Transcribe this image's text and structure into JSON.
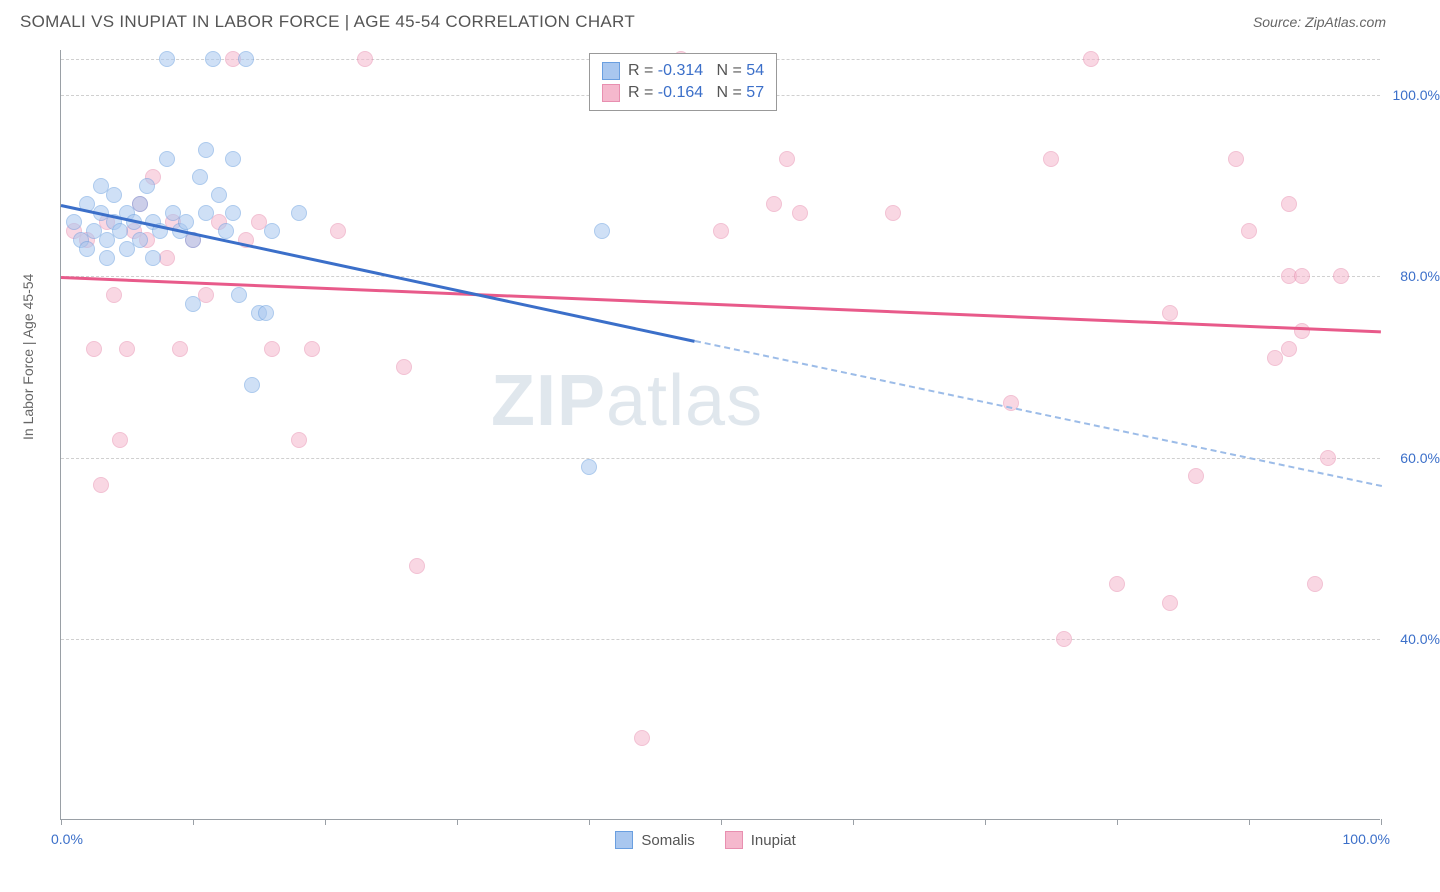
{
  "header": {
    "title": "SOMALI VS INUPIAT IN LABOR FORCE | AGE 45-54 CORRELATION CHART",
    "source": "Source: ZipAtlas.com"
  },
  "chart": {
    "type": "scatter",
    "ylabel": "In Labor Force | Age 45-54",
    "xlim": [
      0,
      100
    ],
    "ylim": [
      20,
      105
    ],
    "background_color": "#ffffff",
    "grid_color": "#d0d0d0",
    "axis_color": "#9aa0a6",
    "tick_label_color": "#3b6fc9",
    "label_fontsize": 14,
    "marker_radius": 8,
    "marker_opacity": 0.55,
    "yticks": [
      40,
      60,
      80,
      100
    ],
    "ytick_labels": [
      "40.0%",
      "60.0%",
      "80.0%",
      "100.0%"
    ],
    "xticks": [
      0,
      10,
      20,
      30,
      40,
      50,
      60,
      70,
      80,
      90,
      100
    ],
    "x_min_label": "0.0%",
    "x_max_label": "100.0%",
    "watermark_zip": "ZIP",
    "watermark_atlas": "atlas",
    "series": {
      "somalis": {
        "label": "Somalis",
        "color_fill": "#a9c7ef",
        "color_stroke": "#6a9fe0",
        "R": "-0.314",
        "N": "54",
        "trend": {
          "x1": 0,
          "y1": 88,
          "x2": 48,
          "y2": 73,
          "x2_ext": 100,
          "y2_ext": 57
        },
        "points": [
          [
            1,
            86
          ],
          [
            1.5,
            84
          ],
          [
            2,
            88
          ],
          [
            2,
            83
          ],
          [
            2.5,
            85
          ],
          [
            3,
            87
          ],
          [
            3,
            90
          ],
          [
            3.5,
            84
          ],
          [
            3.5,
            82
          ],
          [
            4,
            86
          ],
          [
            4,
            89
          ],
          [
            4.5,
            85
          ],
          [
            5,
            87
          ],
          [
            5,
            83
          ],
          [
            5.5,
            86
          ],
          [
            6,
            88
          ],
          [
            6,
            84
          ],
          [
            6.5,
            90
          ],
          [
            7,
            86
          ],
          [
            7,
            82
          ],
          [
            7.5,
            85
          ],
          [
            8,
            104
          ],
          [
            8,
            93
          ],
          [
            8.5,
            87
          ],
          [
            9,
            85
          ],
          [
            9.5,
            86
          ],
          [
            10,
            84
          ],
          [
            10,
            77
          ],
          [
            10.5,
            91
          ],
          [
            11,
            94
          ],
          [
            11,
            87
          ],
          [
            11.5,
            104
          ],
          [
            12,
            89
          ],
          [
            12.5,
            85
          ],
          [
            13,
            93
          ],
          [
            13,
            87
          ],
          [
            13.5,
            78
          ],
          [
            14,
            104
          ],
          [
            14.5,
            68
          ],
          [
            15,
            76
          ],
          [
            15.5,
            76
          ],
          [
            16,
            85
          ],
          [
            18,
            87
          ],
          [
            41,
            85
          ],
          [
            40,
            59
          ]
        ]
      },
      "inupiat": {
        "label": "Inupiat",
        "color_fill": "#f5b8cd",
        "color_stroke": "#e88fb0",
        "R": "-0.164",
        "N": "57",
        "trend": {
          "x1": 0,
          "y1": 80,
          "x2": 100,
          "y2": 74
        },
        "points": [
          [
            1,
            85
          ],
          [
            2,
            84
          ],
          [
            2.5,
            72
          ],
          [
            3,
            57
          ],
          [
            3.5,
            86
          ],
          [
            4,
            78
          ],
          [
            4.5,
            62
          ],
          [
            5,
            72
          ],
          [
            5.5,
            85
          ],
          [
            6,
            88
          ],
          [
            6.5,
            84
          ],
          [
            7,
            91
          ],
          [
            8,
            82
          ],
          [
            8.5,
            86
          ],
          [
            9,
            72
          ],
          [
            10,
            84
          ],
          [
            11,
            78
          ],
          [
            12,
            86
          ],
          [
            13,
            104
          ],
          [
            14,
            84
          ],
          [
            15,
            86
          ],
          [
            16,
            72
          ],
          [
            18,
            62
          ],
          [
            19,
            72
          ],
          [
            21,
            85
          ],
          [
            23,
            104
          ],
          [
            26,
            70
          ],
          [
            27,
            48
          ],
          [
            44,
            29
          ],
          [
            47,
            104
          ],
          [
            50,
            85
          ],
          [
            54,
            88
          ],
          [
            55,
            93
          ],
          [
            56,
            87
          ],
          [
            63,
            87
          ],
          [
            72,
            66
          ],
          [
            75,
            93
          ],
          [
            76,
            40
          ],
          [
            78,
            104
          ],
          [
            80,
            46
          ],
          [
            84,
            44
          ],
          [
            84,
            76
          ],
          [
            86,
            58
          ],
          [
            89,
            93
          ],
          [
            90,
            85
          ],
          [
            92,
            71
          ],
          [
            93,
            80
          ],
          [
            93,
            72
          ],
          [
            93,
            88
          ],
          [
            94,
            80
          ],
          [
            94,
            74
          ],
          [
            95,
            46
          ],
          [
            96,
            60
          ],
          [
            97,
            80
          ]
        ]
      }
    },
    "legend_top": {
      "r_label": "R =",
      "n_label": "N ="
    },
    "legend_bottom_items": [
      "somalis",
      "inupiat"
    ]
  }
}
